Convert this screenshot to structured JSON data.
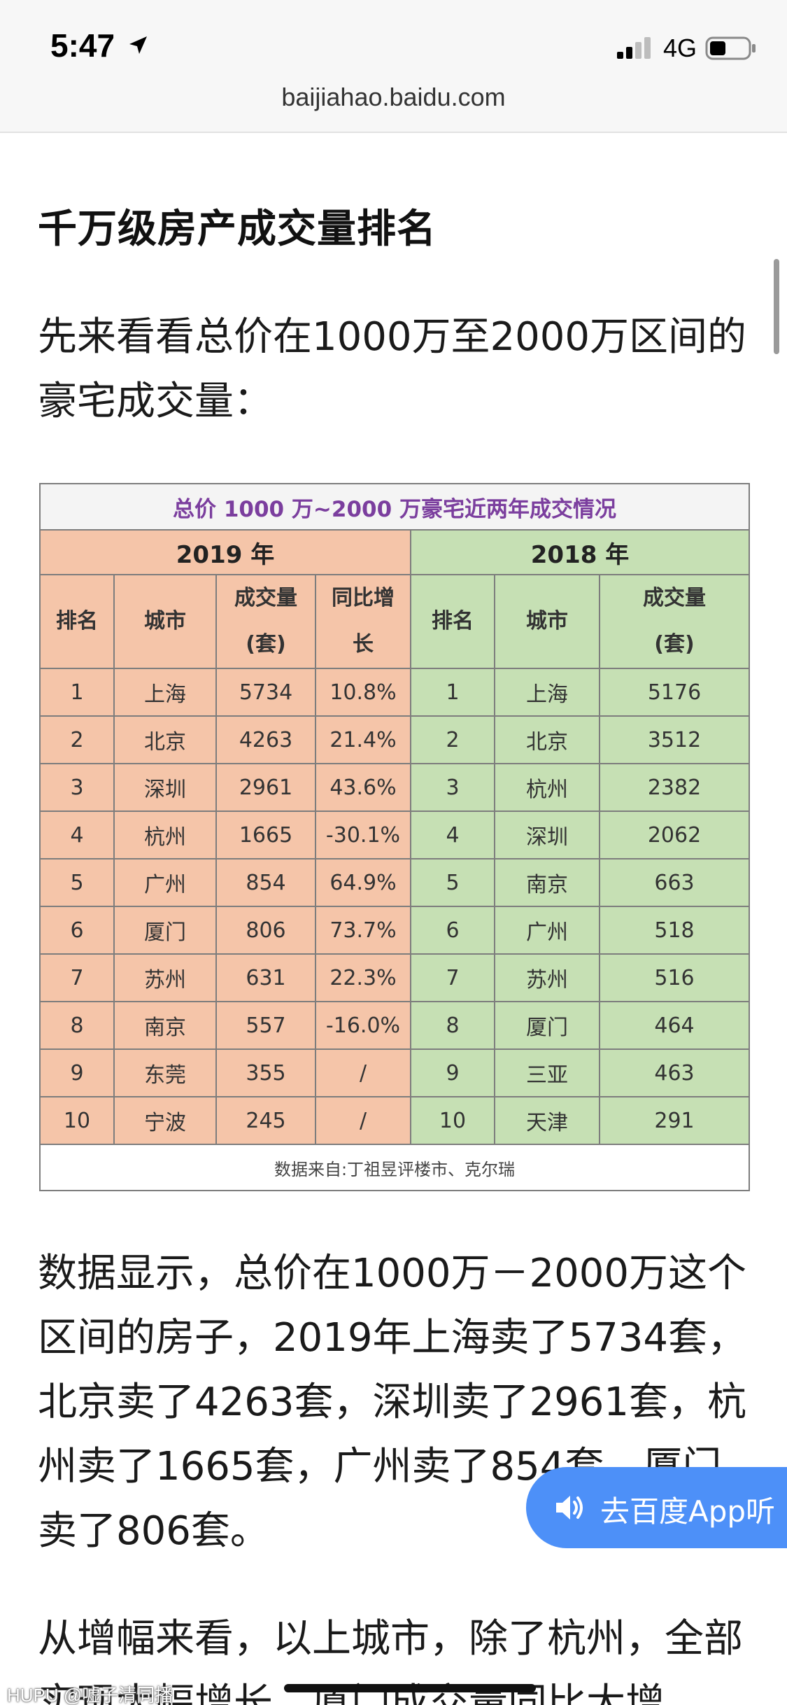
{
  "status_bar": {
    "time": "5:47",
    "location_icon": "location-arrow-icon",
    "signal_icon": "cellular-signal-icon",
    "network": "4G",
    "battery_icon": "battery-icon"
  },
  "browser": {
    "url": "baijiahao.baidu.com"
  },
  "article": {
    "title": "千万级房产成交量排名",
    "paragraph_1": "先来看看总价在1000万至2000万区间的豪宅成交量：",
    "paragraph_2": "数据显示，总价在1000万－2000万这个区间的房子，2019年上海卖了5734套，北京卖了4263套，深圳卖了2961套，杭州卖了1665套，广州卖了854套，厦门卖了806套。",
    "paragraph_3": "从增幅来看，以上城市，除了杭州，全部实现大幅增长，厦门成交量同比大增"
  },
  "table": {
    "caption": "总价 1000 万~2000 万豪宅近两年成交情况",
    "year_2019": "2019 年",
    "year_2018": "2018 年",
    "headers_2019": {
      "rank": "排名",
      "city": "城市",
      "volume_1": "成交量",
      "volume_2": "(套)",
      "growth_1": "同比增",
      "growth_2": "长"
    },
    "headers_2018": {
      "rank": "排名",
      "city": "城市",
      "volume_1": "成交量",
      "volume_2": "(套)"
    },
    "rows": [
      {
        "rank_2019": "1",
        "city_2019": "上海",
        "vol_2019": "5734",
        "growth": "10.8%",
        "rank_2018": "1",
        "city_2018": "上海",
        "vol_2018": "5176"
      },
      {
        "rank_2019": "2",
        "city_2019": "北京",
        "vol_2019": "4263",
        "growth": "21.4%",
        "rank_2018": "2",
        "city_2018": "北京",
        "vol_2018": "3512"
      },
      {
        "rank_2019": "3",
        "city_2019": "深圳",
        "vol_2019": "2961",
        "growth": "43.6%",
        "rank_2018": "3",
        "city_2018": "杭州",
        "vol_2018": "2382"
      },
      {
        "rank_2019": "4",
        "city_2019": "杭州",
        "vol_2019": "1665",
        "growth": "-30.1%",
        "rank_2018": "4",
        "city_2018": "深圳",
        "vol_2018": "2062"
      },
      {
        "rank_2019": "5",
        "city_2019": "广州",
        "vol_2019": "854",
        "growth": "64.9%",
        "rank_2018": "5",
        "city_2018": "南京",
        "vol_2018": "663"
      },
      {
        "rank_2019": "6",
        "city_2019": "厦门",
        "vol_2019": "806",
        "growth": "73.7%",
        "rank_2018": "6",
        "city_2018": "广州",
        "vol_2018": "518"
      },
      {
        "rank_2019": "7",
        "city_2019": "苏州",
        "vol_2019": "631",
        "growth": "22.3%",
        "rank_2018": "7",
        "city_2018": "苏州",
        "vol_2018": "516"
      },
      {
        "rank_2019": "8",
        "city_2019": "南京",
        "vol_2019": "557",
        "growth": "-16.0%",
        "rank_2018": "8",
        "city_2018": "厦门",
        "vol_2018": "464"
      },
      {
        "rank_2019": "9",
        "city_2019": "东莞",
        "vol_2019": "355",
        "growth": "/",
        "rank_2018": "9",
        "city_2018": "三亚",
        "vol_2018": "463"
      },
      {
        "rank_2019": "10",
        "city_2019": "宁波",
        "vol_2019": "245",
        "growth": "/",
        "rank_2018": "10",
        "city_2018": "天津",
        "vol_2018": "291"
      }
    ],
    "source": "数据来自:丁祖昱评楼市、克尔瑞"
  },
  "listen_button": {
    "label": "去百度App听",
    "icon": "speaker-icon"
  },
  "watermark": "HUPU @嘘子清同播",
  "colors": {
    "table_2019_bg": "#f5c5a9",
    "table_2018_bg": "#c6e0b4",
    "caption_text": "#7b3e9e",
    "listen_button_bg": "#4d90f8"
  }
}
